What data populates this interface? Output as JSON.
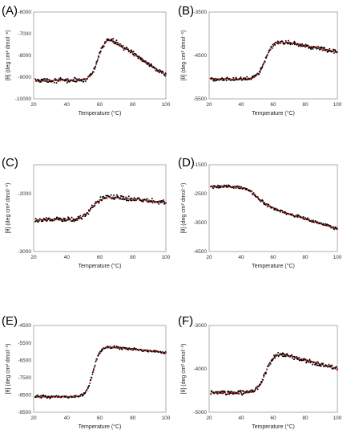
{
  "colors": {
    "data": "#000000",
    "fit": "#d61f1f",
    "frame": "#9a9a9a"
  },
  "chart_data": [
    {
      "panel": "(A)",
      "type": "scatter",
      "xlabel": "Temperature (°C)",
      "ylabel": "[θ] (deg cm² dmol⁻¹)",
      "xlim": [
        20,
        100
      ],
      "xticks": [
        20,
        40,
        60,
        80,
        100
      ],
      "ylim": [
        -10000,
        -6000
      ],
      "yticks": [
        -6000,
        -7000,
        -8000,
        -9000,
        -10000
      ],
      "ytick_labels": [
        "-6000",
        "-7000",
        "-8000",
        "-9000",
        "-10000"
      ],
      "transition": {
        "low_y": -9150,
        "high_y": -7150,
        "tm": 59,
        "width": 2.2,
        "post_slope": -50,
        "post_start": 65,
        "noise": 90
      },
      "series": [
        {
          "name": "",
          "kind": "data"
        },
        {
          "name": "",
          "kind": "fit"
        }
      ]
    },
    {
      "panel": "(B)",
      "type": "scatter",
      "xlabel": "Temperature (°C)",
      "ylabel": "[θ] (deg cm² dmol⁻¹)",
      "xlim": [
        20,
        100
      ],
      "xticks": [
        20,
        40,
        60,
        80,
        100
      ],
      "ylim": [
        -5500,
        -3500
      ],
      "yticks": [
        -3500,
        -4500,
        -5500
      ],
      "ytick_labels": [
        "-3500",
        "-4500",
        "-5500"
      ],
      "transition": {
        "low_y": -5050,
        "high_y": -4150,
        "tm": 55,
        "width": 2.5,
        "post_slope": -7,
        "post_start": 62,
        "noise": 45
      },
      "series": [
        {
          "name": "",
          "kind": "data"
        },
        {
          "name": "",
          "kind": "fit"
        }
      ]
    },
    {
      "panel": "(C)",
      "type": "scatter",
      "xlabel": "Temperature (°C)",
      "ylabel": "[θ] (deg cm² dmol⁻¹)",
      "xlim": [
        20,
        100
      ],
      "xticks": [
        20,
        40,
        60,
        80,
        100
      ],
      "ylim": [
        -3000,
        -1500
      ],
      "yticks": [
        -2000,
        -3000
      ],
      "ytick_labels": [
        "-2000",
        "-3000"
      ],
      "transition": {
        "low_y": -2450,
        "high_y": -2050,
        "tm": 55,
        "width": 3,
        "post_slope": -3,
        "post_start": 65,
        "noise": 40
      },
      "series": [
        {
          "name": "",
          "kind": "data"
        },
        {
          "name": "",
          "kind": "fit"
        }
      ]
    },
    {
      "panel": "(D)",
      "type": "scatter",
      "xlabel": "Temperature (°C)",
      "ylabel": "[θ] (deg cm² dmol⁻¹)",
      "xlim": [
        20,
        100
      ],
      "xticks": [
        20,
        40,
        60,
        80,
        100
      ],
      "ylim": [
        -4500,
        -1500
      ],
      "yticks": [
        -1500,
        -2500,
        -3500,
        -4500
      ],
      "ytick_labels": [
        "-1500",
        "-2500",
        "-3500",
        "-4500"
      ],
      "transition": {
        "low_y": -2250,
        "high_y": -3000,
        "tm": 50,
        "width": 3.5,
        "post_slope": -17,
        "post_start": 58,
        "noise": 50
      },
      "series": [
        {
          "name": "",
          "kind": "data"
        },
        {
          "name": "",
          "kind": "fit"
        }
      ]
    },
    {
      "panel": "(E)",
      "type": "scatter",
      "xlabel": "Temperature (°C)",
      "ylabel": "[θ] (deg cm² dmol⁻¹)",
      "xlim": [
        20,
        100
      ],
      "xticks": [
        20,
        40,
        60,
        80,
        100
      ],
      "ylim": [
        -9500,
        -4500
      ],
      "yticks": [
        -4500,
        -5500,
        -6500,
        -7500,
        -8500,
        -9500
      ],
      "ytick_labels": [
        "-4500",
        "-5500",
        "-6500",
        "-7500",
        "-8500",
        "-9500"
      ],
      "transition": {
        "low_y": -8600,
        "high_y": -5700,
        "tm": 56,
        "width": 2,
        "post_slope": -10,
        "post_start": 63,
        "noise": 70
      },
      "series": [
        {
          "name": "",
          "kind": "data"
        },
        {
          "name": "",
          "kind": "fit"
        }
      ]
    },
    {
      "panel": "(F)",
      "type": "scatter",
      "xlabel": "Temperature (°C)",
      "ylabel": "[θ] (deg cm² dmol⁻¹)",
      "xlim": [
        20,
        100
      ],
      "xticks": [
        20,
        40,
        60,
        80,
        100
      ],
      "ylim": [
        -5000,
        -3000
      ],
      "yticks": [
        -3000,
        -4000,
        -5000
      ],
      "ytick_labels": [
        "-3000",
        "-4000",
        "-5000"
      ],
      "transition": {
        "low_y": -4550,
        "high_y": -3650,
        "tm": 55,
        "width": 2.5,
        "post_slope": -10,
        "post_start": 65,
        "noise": 45
      },
      "series": [
        {
          "name": "",
          "kind": "data"
        },
        {
          "name": "",
          "kind": "fit"
        }
      ]
    }
  ]
}
